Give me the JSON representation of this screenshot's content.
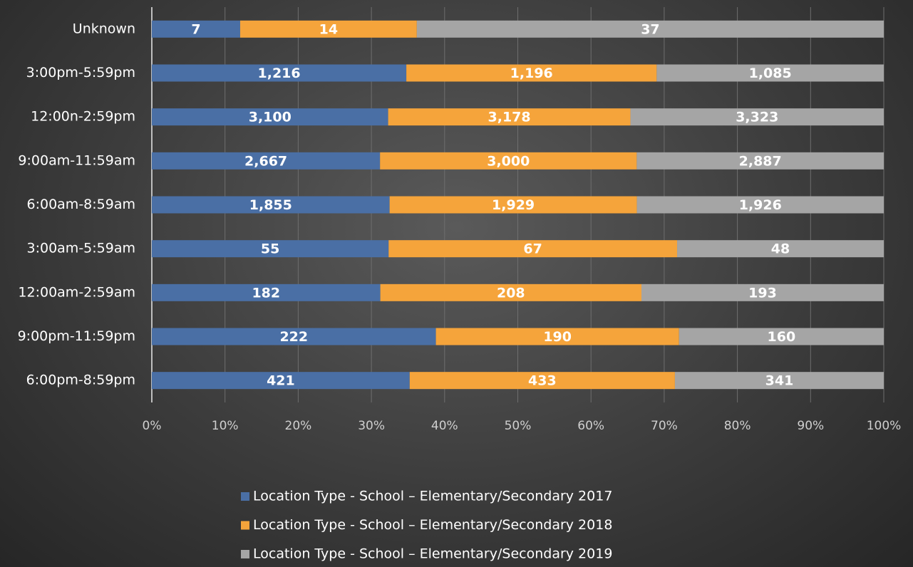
{
  "chart_data": {
    "type": "bar",
    "orientation": "horizontal",
    "stacked": "percent",
    "categories": [
      "Unknown",
      "3:00pm-5:59pm",
      "12:00n-2:59pm",
      "9:00am-11:59am",
      "6:00am-8:59am",
      "3:00am-5:59am",
      "12:00am-2:59am",
      "9:00pm-11:59pm",
      "6:00pm-8:59pm"
    ],
    "series": [
      {
        "name": "Location Type - School – Elementary/Secondary 2017",
        "color": "#4a6fa5",
        "values": [
          7,
          1216,
          3100,
          2667,
          1855,
          55,
          182,
          222,
          421
        ],
        "value_labels": [
          "7",
          "1,216",
          "3,100",
          "2,667",
          "1,855",
          "55",
          "182",
          "222",
          "421"
        ]
      },
      {
        "name": "Location Type - School – Elementary/Secondary 2018",
        "color": "#f5a43b",
        "values": [
          14,
          1196,
          3178,
          3000,
          1929,
          67,
          208,
          190,
          433
        ],
        "value_labels": [
          "14",
          "1,196",
          "3,178",
          "3,000",
          "1,929",
          "67",
          "208",
          "190",
          "433"
        ]
      },
      {
        "name": "Location Type - School – Elementary/Secondary 2019",
        "color": "#a5a5a5",
        "values": [
          37,
          1085,
          3323,
          2887,
          1926,
          48,
          193,
          160,
          341
        ],
        "value_labels": [
          "37",
          "1,085",
          "3,323",
          "2,887",
          "1,926",
          "48",
          "193",
          "160",
          "341"
        ]
      }
    ],
    "xlim": [
      0,
      100
    ],
    "xticks": [
      {
        "value": 0,
        "label": "0%"
      },
      {
        "value": 10,
        "label": "10%"
      },
      {
        "value": 20,
        "label": "20%"
      },
      {
        "value": 30,
        "label": "30%"
      },
      {
        "value": 40,
        "label": "40%"
      },
      {
        "value": 50,
        "label": "50%"
      },
      {
        "value": 60,
        "label": "60%"
      },
      {
        "value": 70,
        "label": "70%"
      },
      {
        "value": 80,
        "label": "80%"
      },
      {
        "value": 90,
        "label": "90%"
      },
      {
        "value": 100,
        "label": "100%"
      }
    ],
    "grid": true,
    "legend": "bottom"
  }
}
